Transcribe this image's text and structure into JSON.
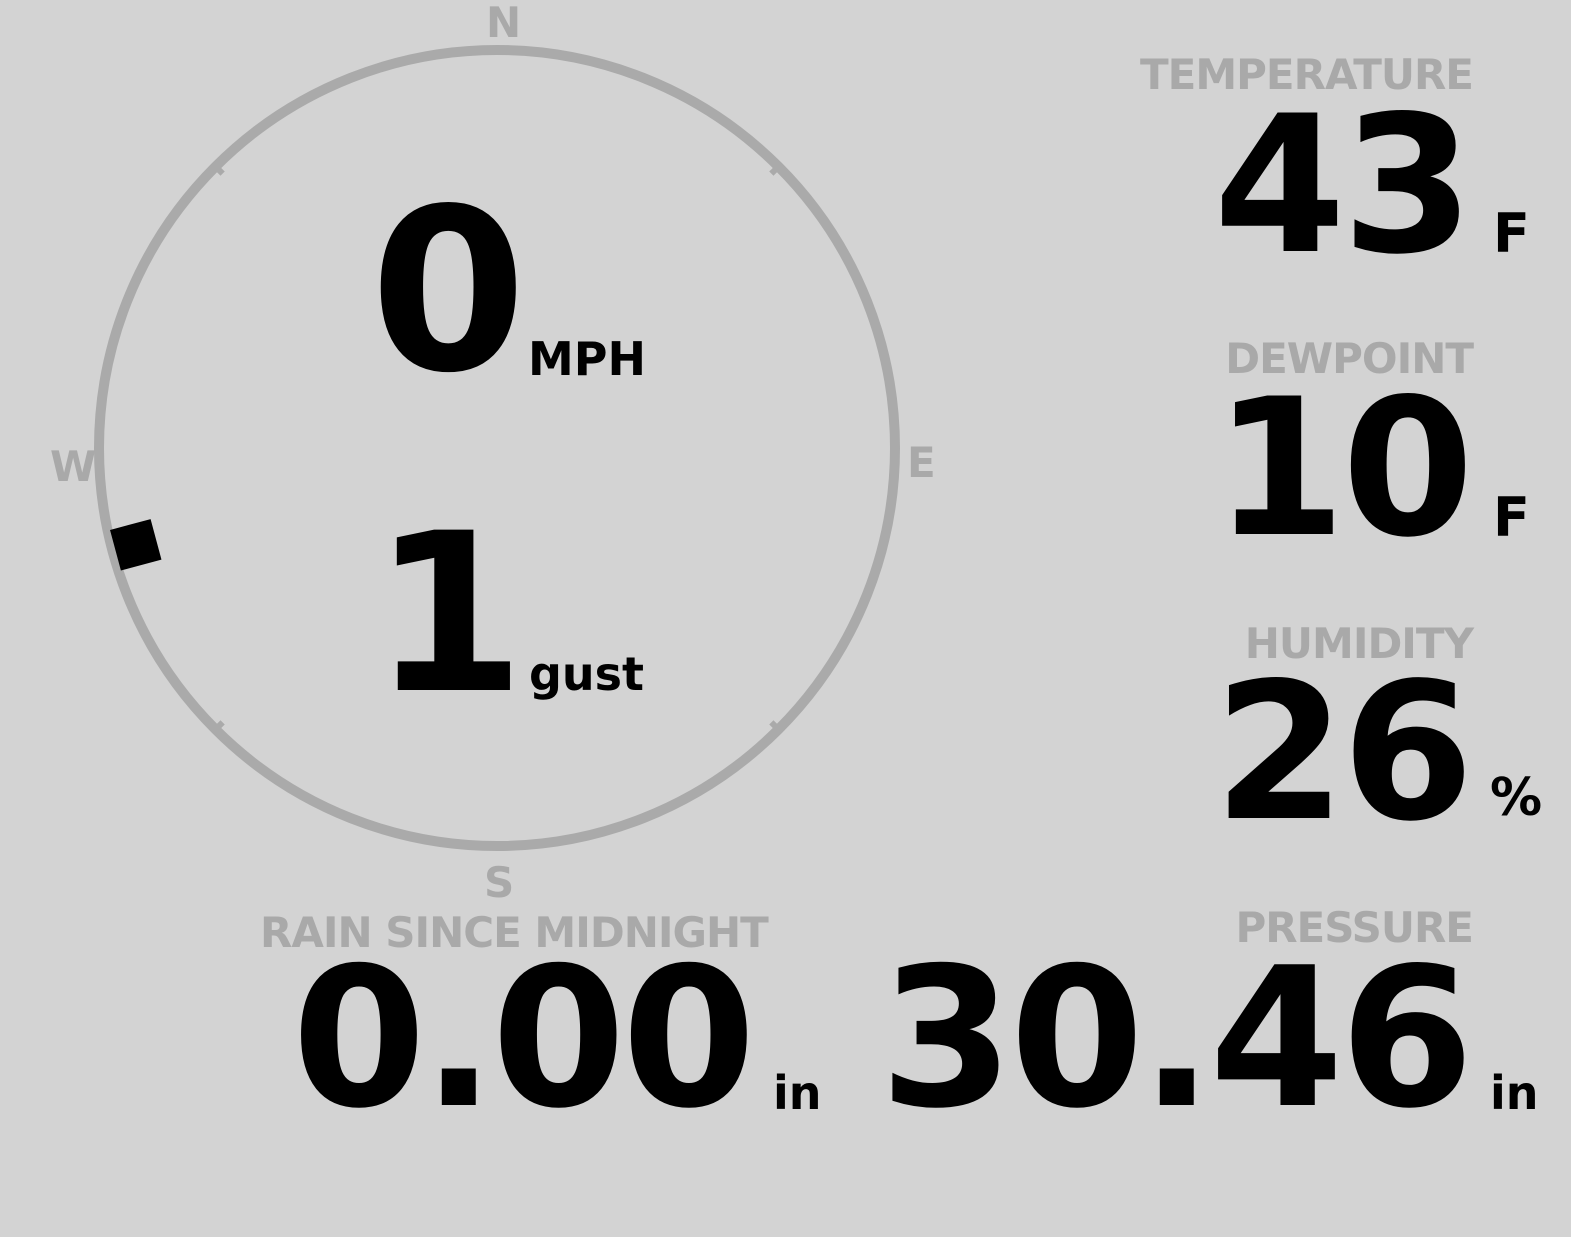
{
  "wind": {
    "compass": {
      "north": "N",
      "east": "E",
      "south": "S",
      "west": "W"
    },
    "speed": "0",
    "speed_unit": "MPH",
    "gust": "1",
    "gust_unit": "gust",
    "direction_degrees": 255,
    "ring_color": "#aaaaaa"
  },
  "temperature": {
    "label": "TEMPERATURE",
    "value": "43",
    "unit": "F"
  },
  "dewpoint": {
    "label": "DEWPOINT",
    "value": "10",
    "unit": "F"
  },
  "humidity": {
    "label": "HUMIDITY",
    "value": "26",
    "unit": "%"
  },
  "pressure": {
    "label": "PRESSURE",
    "value": "30.46",
    "unit": "in"
  },
  "rain": {
    "label": "RAIN SINCE MIDNIGHT",
    "value": "0.00",
    "unit": "in"
  }
}
